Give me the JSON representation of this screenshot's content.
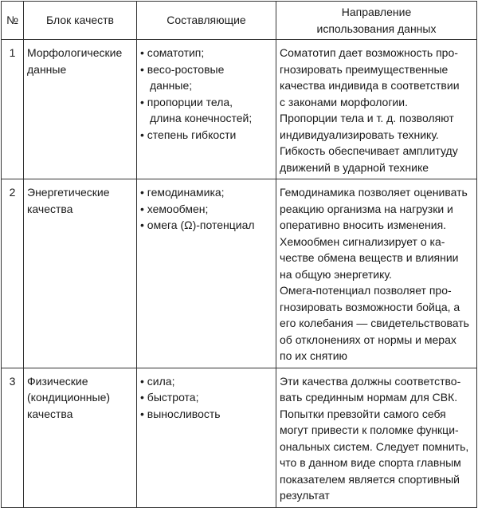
{
  "header": {
    "num": "№",
    "block": "Блок качеств",
    "components": "Составляющие",
    "direction_lines": [
      "Направление",
      "использования данных"
    ]
  },
  "rows": [
    {
      "num": "1",
      "block_lines": [
        "Морфологические",
        "данные"
      ],
      "components": [
        [
          "соматотип;"
        ],
        [
          "весо-ростовые",
          "данные;"
        ],
        [
          "пропорции тела,",
          "длина конечностей;"
        ],
        [
          "степень гибкости"
        ]
      ],
      "direction_lines": [
        "Соматотип дает возможность про-",
        "гнозировать преимущественные",
        "качества индивида в соответствии",
        "с законами морфологии.",
        "Пропорции тела и т. д. позволяют",
        "индивидуализировать технику.",
        "Гибкость обеспечивает амплитуду",
        "движений в ударной технике"
      ]
    },
    {
      "num": "2",
      "block_lines": [
        "Энергетические",
        "качества"
      ],
      "components": [
        [
          "гемодинамика;"
        ],
        [
          "хемообмен;"
        ],
        [
          "омега (Ω)-потенциал"
        ]
      ],
      "direction_lines": [
        "Гемодинамика позволяет оценивать",
        "реакцию организма на нагрузки и",
        "оперативно вносить изменения.",
        "Хемообмен сигнализирует о ка-",
        "честве обмена веществ и влиянии",
        "на общую энергетику.",
        "Омега-потенциал позволяет про-",
        "гнозировать возможности бойца, а",
        "его колебания — свидетельствовать",
        "об отклонениях от нормы и мерах",
        "по их снятию"
      ]
    },
    {
      "num": "3",
      "block_lines": [
        "Физические",
        "(кондиционные)",
        "качества"
      ],
      "components": [
        [
          "сила;"
        ],
        [
          "быстрота;"
        ],
        [
          "выносливость"
        ]
      ],
      "direction_lines": [
        "Эти качества должны соответство-",
        "вать срединным нормам для СВК.",
        "Попытки превзойти самого себя",
        "могут привести к поломке функци-",
        "ональных систем. Следует помнить,",
        "что в данном виде спорта главным",
        "показателем является спортивный",
        "результат"
      ]
    }
  ]
}
